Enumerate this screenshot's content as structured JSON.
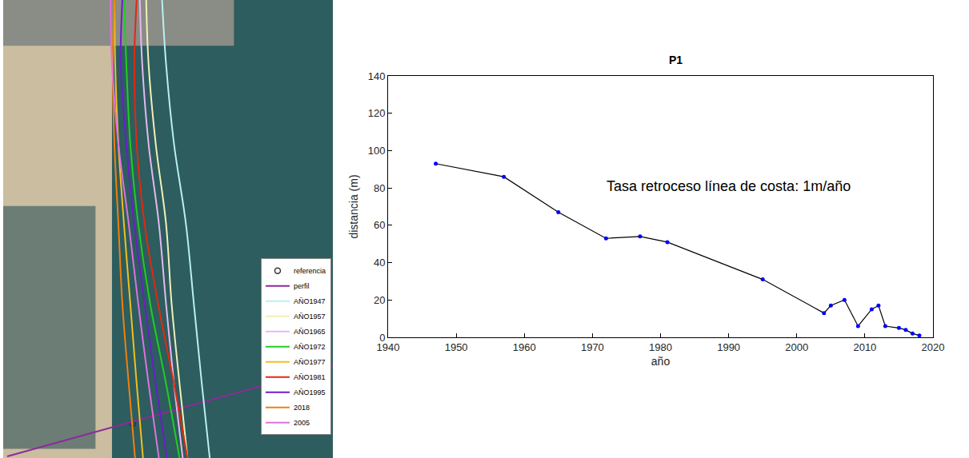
{
  "chart_data": [
    {
      "type": "map",
      "xlim": [
        0,
        415
      ],
      "ylim": [
        573,
        0
      ],
      "tick_labels": false,
      "grid": false,
      "legend": "lower right",
      "series": [
        {
          "name": "referencia",
          "type": "scatter",
          "marker": "circle-open",
          "color": "#333333",
          "x": [
            163
          ],
          "values": [
            530
          ]
        },
        {
          "name": "perfil",
          "type": "line",
          "color": "#8e2a9a",
          "x": [
            5,
            415
          ],
          "values": [
            571,
            458
          ]
        },
        {
          "name": "AÑO1947",
          "type": "line",
          "color": "#b8f0f0",
          "x": [
            200,
            205,
            215,
            230,
            240,
            250,
            260
          ],
          "values": [
            0,
            80,
            180,
            280,
            380,
            480,
            573
          ]
        },
        {
          "name": "AÑO1957",
          "type": "line",
          "color": "#f2f0b8",
          "x": [
            180,
            183,
            192,
            205,
            212,
            222,
            232
          ],
          "values": [
            0,
            80,
            180,
            280,
            380,
            480,
            573
          ]
        },
        {
          "name": "AÑO1965",
          "type": "line",
          "color": "#e6b8f0",
          "x": [
            172,
            175,
            183,
            196,
            205,
            215,
            226
          ],
          "values": [
            0,
            80,
            180,
            280,
            380,
            480,
            573
          ]
        },
        {
          "name": "AÑO1972",
          "type": "line",
          "color": "#22cc22",
          "x": [
            152,
            155,
            160,
            170,
            185,
            205,
            222
          ],
          "values": [
            0,
            80,
            180,
            280,
            380,
            480,
            573
          ]
        },
        {
          "name": "AÑO1977",
          "type": "line",
          "color": "#f0c020",
          "x": [
            140,
            141,
            145,
            152,
            160,
            168,
            176
          ],
          "values": [
            0,
            80,
            180,
            280,
            380,
            480,
            573
          ]
        },
        {
          "name": "AÑO1981",
          "type": "line",
          "color": "#e02a10",
          "x": [
            168,
            165,
            168,
            178,
            195,
            215,
            232
          ],
          "values": [
            0,
            80,
            180,
            280,
            380,
            480,
            573
          ]
        },
        {
          "name": "AÑO1995",
          "type": "line",
          "color": "#6a1fc8",
          "x": [
            150,
            148,
            155,
            165,
            178,
            192,
            206
          ],
          "values": [
            0,
            80,
            180,
            280,
            380,
            480,
            573
          ]
        },
        {
          "name": "2018",
          "type": "line",
          "color": "#f08010",
          "x": [
            140,
            138,
            140,
            145,
            150,
            158,
            166
          ],
          "values": [
            0,
            80,
            180,
            280,
            380,
            480,
            573
          ]
        },
        {
          "name": "2005",
          "type": "line",
          "color": "#e070e0",
          "x": [
            135,
            137,
            145,
            158,
            170,
            183,
            196
          ],
          "values": [
            0,
            80,
            180,
            280,
            380,
            480,
            573
          ]
        }
      ]
    },
    {
      "type": "line",
      "title": "P1",
      "x_label": "año",
      "y_label": "distancia (m)",
      "x": [
        1947,
        1957,
        1965,
        1972,
        1977,
        1981,
        1995,
        2004,
        2005,
        2007,
        2009,
        2011,
        2012,
        2013,
        2015,
        2016,
        2017,
        2018
      ],
      "values": [
        93,
        86,
        67,
        53,
        54,
        51,
        31,
        13,
        17,
        20,
        6,
        15,
        17,
        6,
        5,
        4,
        2,
        1
      ],
      "color": "#000000",
      "marker": "circle",
      "marker_color": "#0000ff",
      "xlim": [
        1940,
        2020
      ],
      "xticks": [
        1940,
        1950,
        1960,
        1970,
        1980,
        1990,
        2000,
        2010,
        2020
      ],
      "ylim": [
        0,
        140
      ],
      "yticks": [
        0,
        20,
        40,
        60,
        80,
        100,
        120,
        140
      ],
      "grid": false,
      "annotations": [
        {
          "text": "Tasa retroceso línea de costa: 1m/año",
          "x": 1990,
          "y": 81
        }
      ]
    }
  ]
}
